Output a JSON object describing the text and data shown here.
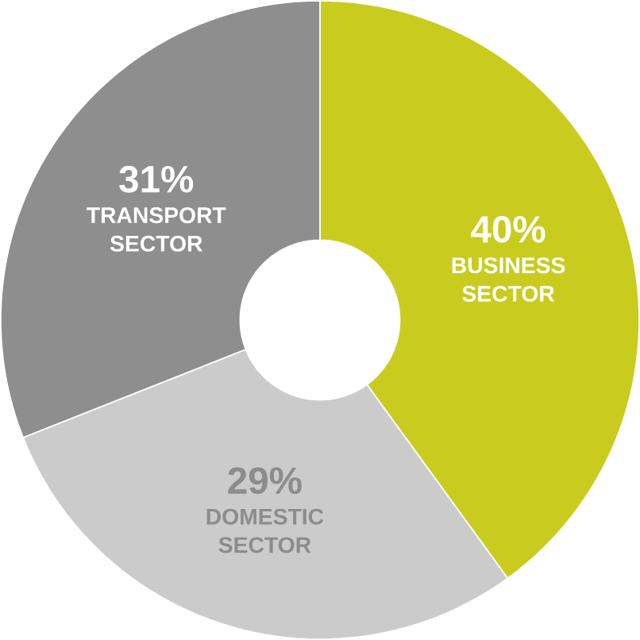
{
  "chart_data": {
    "type": "donut",
    "categories": [
      "BUSINESS SECTOR",
      "DOMESTIC SECTOR",
      "TRANSPORT SECTOR"
    ],
    "values": [
      40,
      29,
      31
    ],
    "value_labels": [
      "40%",
      "29%",
      "31%"
    ],
    "colors": [
      "#c9cc1e",
      "#cbcbcb",
      "#8e8e8f"
    ]
  }
}
